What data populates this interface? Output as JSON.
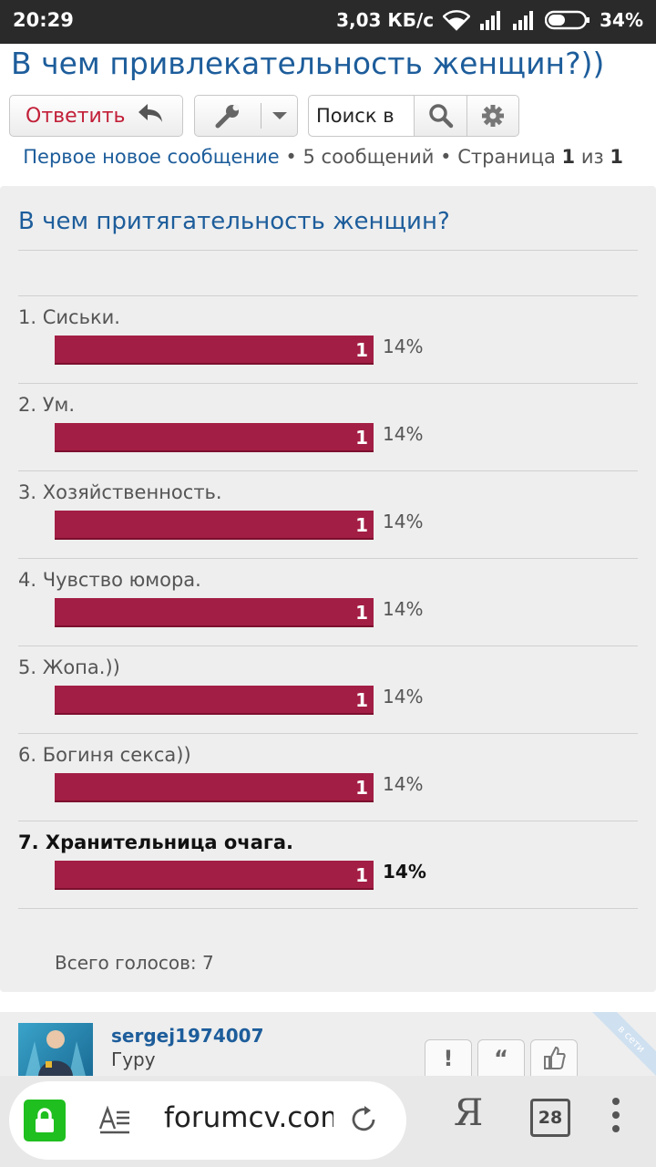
{
  "status_bar": {
    "time": "20:29",
    "speed": "3,03 КБ/с",
    "battery": "34%"
  },
  "thread": {
    "title": "В чем привлекательность женщин?))"
  },
  "toolbar": {
    "reply_label": "Ответить",
    "search_placeholder": "Поиск в"
  },
  "pagination": {
    "first_new": "Первое новое сообщение",
    "posts": "5 сообщений",
    "page_prefix": "Страница",
    "page": "1",
    "of": "из",
    "total": "1",
    "bullet": "•"
  },
  "poll": {
    "question": "В чем притягательность женщин?",
    "options": [
      {
        "label": "1. Сиськи.",
        "count": "1",
        "percent": "14%",
        "share": 1.0,
        "selected": false
      },
      {
        "label": "2. Ум.",
        "count": "1",
        "percent": "14%",
        "share": 1.0,
        "selected": false
      },
      {
        "label": "3. Хозяйственность.",
        "count": "1",
        "percent": "14%",
        "share": 1.0,
        "selected": false
      },
      {
        "label": "4. Чувство юмора.",
        "count": "1",
        "percent": "14%",
        "share": 1.0,
        "selected": false
      },
      {
        "label": "5. Жопа.))",
        "count": "1",
        "percent": "14%",
        "share": 1.0,
        "selected": false
      },
      {
        "label": "6. Богиня секса))",
        "count": "1",
        "percent": "14%",
        "share": 1.0,
        "selected": false
      },
      {
        "label": "7. Хранительница очага.",
        "count": "1",
        "percent": "14%",
        "share": 1.0,
        "selected": true
      }
    ],
    "total_votes": "Всего голосов: 7",
    "bar_color": "#a31e44"
  },
  "post": {
    "username": "sergej1974007",
    "user_title": "Гуру",
    "online_badge": "в сети"
  },
  "browser": {
    "url": "forumcv.com",
    "tab_count": "28",
    "search_logo": "Я"
  },
  "icons": [
    "signal-icon",
    "wifi-icon",
    "battery-icon",
    "reply-arrow-icon",
    "wrench-icon",
    "chevron-down-icon",
    "search-icon",
    "gear-icon",
    "lock-icon",
    "reader-mode-icon",
    "reload-icon",
    "tabs-icon",
    "menu-icon"
  ]
}
